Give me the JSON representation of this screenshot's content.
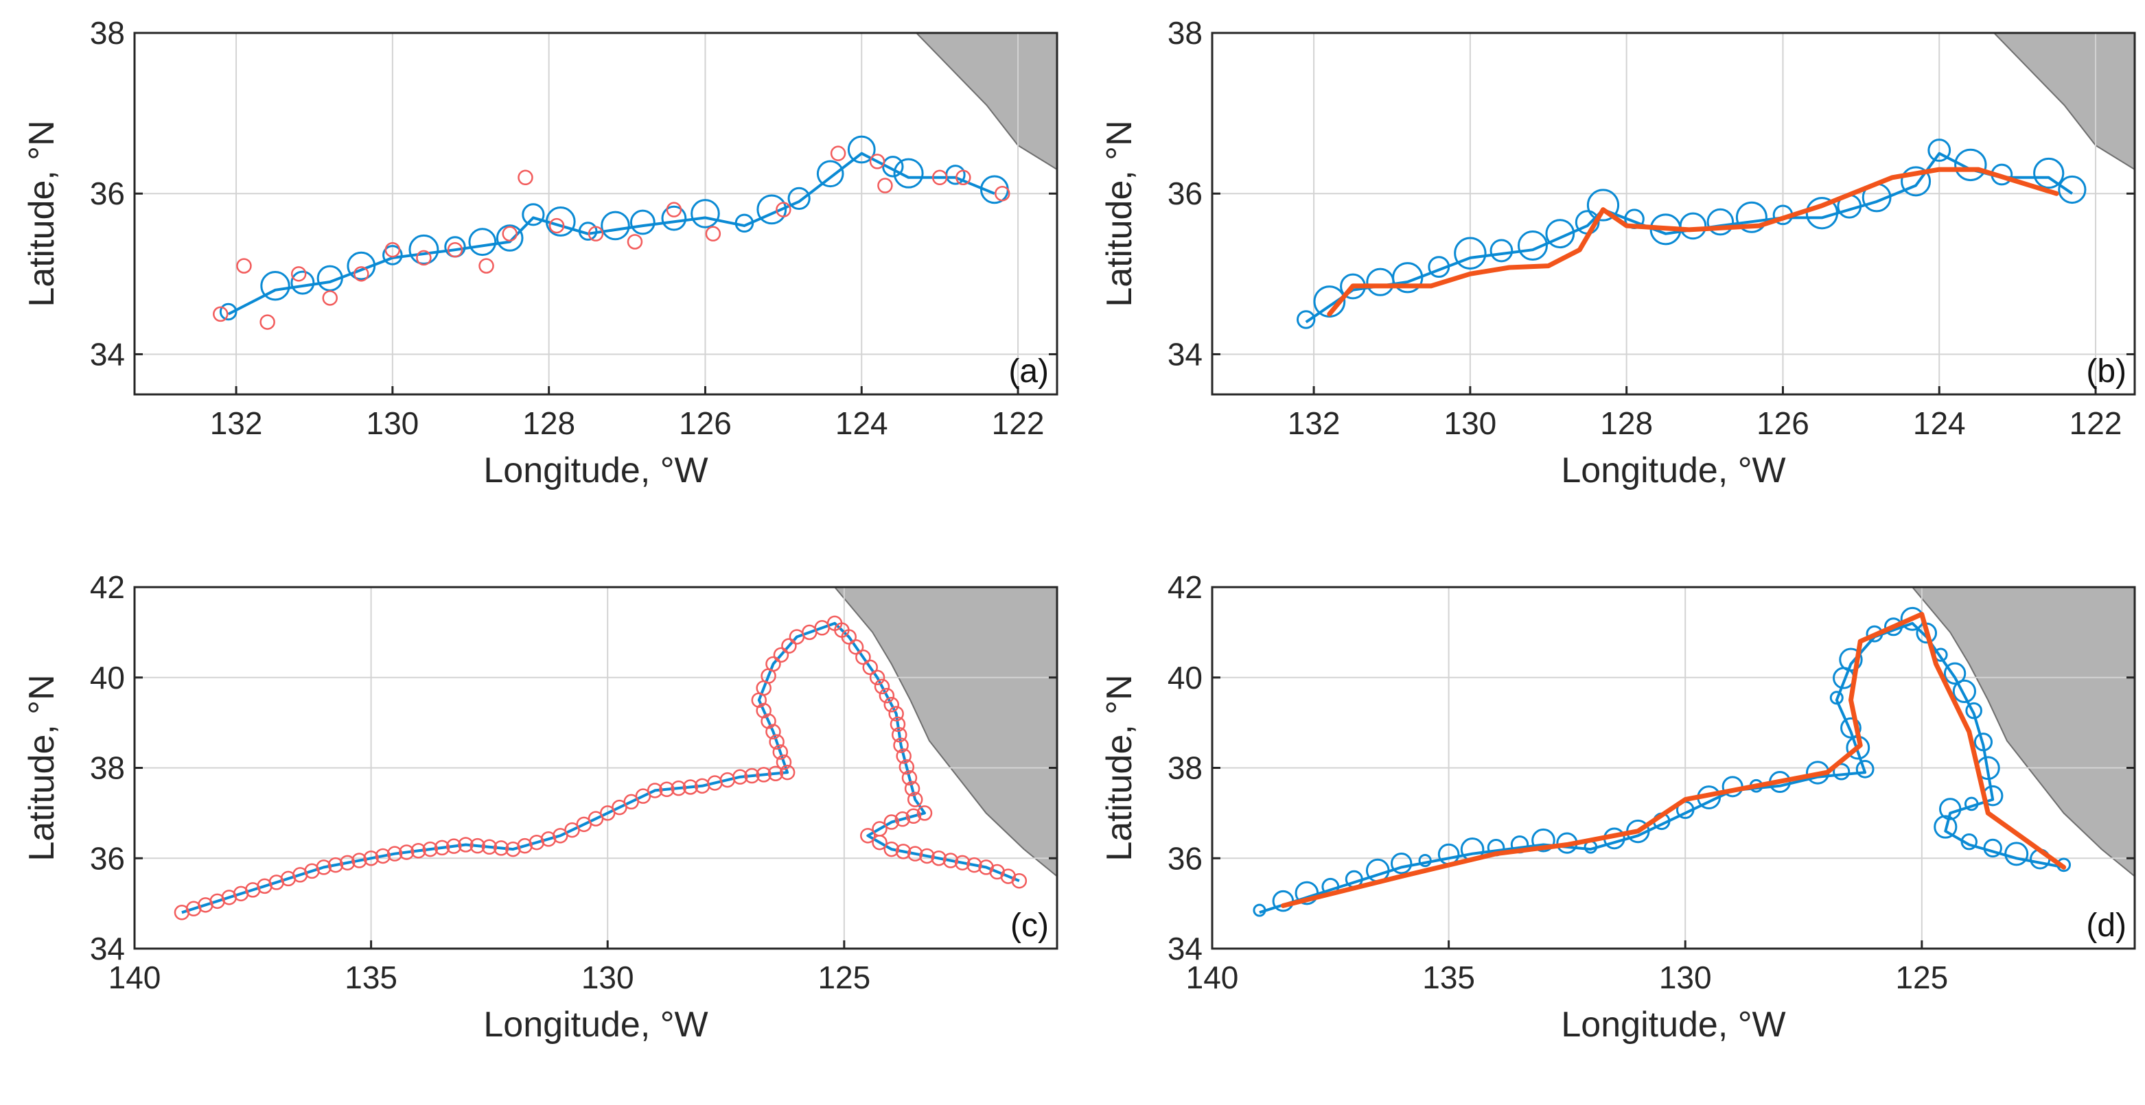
{
  "colors": {
    "track": "#0a8ad4",
    "circle": "#0a8ad4",
    "marker": "#f25c5c",
    "smooth": "#f2541b",
    "land": "#b3b3b3",
    "grid": "#d3d3d3",
    "axis": "#262626"
  },
  "chart_data": [
    {
      "type": "line",
      "panel_label": "(a)",
      "xlabel": "Longitude, °W",
      "ylabel": "Latitude, °N",
      "xlim": [
        133.3,
        121.5
      ],
      "ylim": [
        33.5,
        38
      ],
      "xticks": [
        132,
        130,
        128,
        126,
        124,
        122
      ],
      "yticks": [
        34,
        36,
        38
      ],
      "grid": true,
      "track": [
        [
          132.1,
          34.5
        ],
        [
          131.5,
          34.8
        ],
        [
          130.8,
          34.9
        ],
        [
          130,
          35.2
        ],
        [
          129.2,
          35.3
        ],
        [
          128.5,
          35.4
        ],
        [
          128.2,
          35.7
        ],
        [
          127.5,
          35.5
        ],
        [
          126.8,
          35.6
        ],
        [
          126,
          35.7
        ],
        [
          125.5,
          35.6
        ],
        [
          124.8,
          35.9
        ],
        [
          124.4,
          36.2
        ],
        [
          124,
          36.5
        ],
        [
          123.6,
          36.3
        ],
        [
          123.4,
          36.2
        ],
        [
          122.8,
          36.2
        ],
        [
          122.3,
          36
        ]
      ],
      "eddy_radius": 0.35,
      "markers": [
        [
          132.2,
          34.5
        ],
        [
          131.9,
          35.1
        ],
        [
          131.6,
          34.4
        ],
        [
          131.2,
          35
        ],
        [
          130.8,
          34.7
        ],
        [
          130.4,
          35
        ],
        [
          130,
          35.3
        ],
        [
          129.6,
          35.2
        ],
        [
          129.2,
          35.3
        ],
        [
          128.8,
          35.1
        ],
        [
          128.5,
          35.5
        ],
        [
          128.3,
          36.2
        ],
        [
          127.9,
          35.6
        ],
        [
          127.4,
          35.5
        ],
        [
          126.9,
          35.4
        ],
        [
          126.4,
          35.8
        ],
        [
          125.9,
          35.5
        ],
        [
          125,
          35.8
        ],
        [
          124.3,
          36.5
        ],
        [
          123.8,
          36.4
        ],
        [
          123.7,
          36.1
        ],
        [
          123,
          36.2
        ],
        [
          122.7,
          36.2
        ],
        [
          122.2,
          36
        ]
      ],
      "land": [
        [
          123.3,
          38
        ],
        [
          121.5,
          38
        ],
        [
          121.5,
          36.3
        ],
        [
          122,
          36.6
        ],
        [
          122.4,
          37.1
        ],
        [
          122.8,
          37.5
        ],
        [
          123.1,
          37.8
        ]
      ]
    },
    {
      "type": "line",
      "panel_label": "(b)",
      "xlabel": "Longitude, °W",
      "ylabel": "Latitude, °N",
      "xlim": [
        133.3,
        121.5
      ],
      "ylim": [
        33.5,
        38
      ],
      "xticks": [
        132,
        130,
        128,
        126,
        124,
        122
      ],
      "yticks": [
        34,
        36,
        38
      ],
      "grid": true,
      "track": [
        [
          132.1,
          34.4
        ],
        [
          131.5,
          34.8
        ],
        [
          130.8,
          34.9
        ],
        [
          130,
          35.2
        ],
        [
          129.2,
          35.3
        ],
        [
          128.5,
          35.6
        ],
        [
          128.3,
          35.8
        ],
        [
          127.5,
          35.5
        ],
        [
          126.8,
          35.6
        ],
        [
          126,
          35.7
        ],
        [
          125.5,
          35.7
        ],
        [
          124.8,
          35.9
        ],
        [
          124.3,
          36.1
        ],
        [
          124,
          36.5
        ],
        [
          123.6,
          36.3
        ],
        [
          123.2,
          36.2
        ],
        [
          122.6,
          36.2
        ],
        [
          122.3,
          36
        ]
      ],
      "eddy_radius": 0.38,
      "smooth": [
        [
          131.8,
          34.5
        ],
        [
          131.5,
          34.85
        ],
        [
          131,
          34.85
        ],
        [
          130.5,
          34.85
        ],
        [
          130,
          35
        ],
        [
          129.5,
          35.08
        ],
        [
          129,
          35.1
        ],
        [
          128.6,
          35.3
        ],
        [
          128.3,
          35.8
        ],
        [
          128,
          35.6
        ],
        [
          127.2,
          35.55
        ],
        [
          126.3,
          35.6
        ],
        [
          125.5,
          35.85
        ],
        [
          124.6,
          36.2
        ],
        [
          124,
          36.3
        ],
        [
          123.5,
          36.3
        ],
        [
          122.5,
          36
        ]
      ],
      "land": [
        [
          123.3,
          38
        ],
        [
          121.5,
          38
        ],
        [
          121.5,
          36.3
        ],
        [
          122,
          36.6
        ],
        [
          122.4,
          37.1
        ],
        [
          122.8,
          37.5
        ],
        [
          123.1,
          37.8
        ]
      ]
    },
    {
      "type": "line",
      "panel_label": "(c)",
      "xlabel": "Longitude, °W",
      "ylabel": "Latitude, °N",
      "xlim": [
        140,
        120.5
      ],
      "ylim": [
        34,
        42
      ],
      "xticks": [
        140,
        135,
        130,
        125
      ],
      "yticks": [
        34,
        36,
        38,
        40,
        42
      ],
      "grid": true,
      "track": [
        [
          139,
          34.8
        ],
        [
          137.5,
          35.3
        ],
        [
          136,
          35.8
        ],
        [
          134.5,
          36.1
        ],
        [
          133,
          36.3
        ],
        [
          132,
          36.2
        ],
        [
          131,
          36.5
        ],
        [
          130,
          37
        ],
        [
          129,
          37.5
        ],
        [
          128,
          37.6
        ],
        [
          127.2,
          37.8
        ],
        [
          126.2,
          37.9
        ],
        [
          126.5,
          38.8
        ],
        [
          126.8,
          39.5
        ],
        [
          126.5,
          40.3
        ],
        [
          126,
          40.9
        ],
        [
          125.2,
          41.2
        ],
        [
          124.9,
          40.9
        ],
        [
          124.3,
          40
        ],
        [
          123.9,
          39.2
        ],
        [
          123.8,
          38.5
        ],
        [
          123.5,
          37.3
        ],
        [
          123.3,
          37
        ],
        [
          124,
          36.8
        ],
        [
          124.5,
          36.5
        ],
        [
          124,
          36.2
        ],
        [
          123,
          36
        ],
        [
          122,
          35.8
        ],
        [
          121.3,
          35.5
        ]
      ],
      "marker_step": 0.25,
      "land": [
        [
          125.2,
          42
        ],
        [
          120.5,
          42
        ],
        [
          120.5,
          35.6
        ],
        [
          121.2,
          36.2
        ],
        [
          122,
          37
        ],
        [
          122.6,
          37.8
        ],
        [
          123.2,
          38.6
        ],
        [
          123.6,
          39.5
        ],
        [
          124,
          40.3
        ],
        [
          124.4,
          41
        ],
        [
          124.8,
          41.5
        ]
      ]
    },
    {
      "type": "line",
      "panel_label": "(d)",
      "xlabel": "Longitude, °W",
      "ylabel": "Latitude, °N",
      "xlim": [
        140,
        120.5
      ],
      "ylim": [
        34,
        42
      ],
      "xticks": [
        140,
        135,
        130,
        125
      ],
      "yticks": [
        34,
        36,
        38,
        40,
        42
      ],
      "grid": true,
      "track": [
        [
          139,
          34.8
        ],
        [
          137.5,
          35.3
        ],
        [
          136,
          35.8
        ],
        [
          134.5,
          36.1
        ],
        [
          133,
          36.3
        ],
        [
          132,
          36.2
        ],
        [
          131,
          36.5
        ],
        [
          130,
          37
        ],
        [
          129,
          37.5
        ],
        [
          128,
          37.6
        ],
        [
          127.2,
          37.8
        ],
        [
          126.2,
          37.9
        ],
        [
          126.5,
          38.8
        ],
        [
          126.8,
          39.5
        ],
        [
          126.5,
          40.3
        ],
        [
          126,
          40.9
        ],
        [
          125.2,
          41.2
        ],
        [
          124.9,
          40.9
        ],
        [
          124.3,
          40
        ],
        [
          123.9,
          39.2
        ],
        [
          123.7,
          38.5
        ],
        [
          123.5,
          37.3
        ],
        [
          124.4,
          37
        ],
        [
          124.5,
          36.6
        ],
        [
          124,
          36.3
        ],
        [
          123,
          36
        ],
        [
          122,
          35.8
        ]
      ],
      "smooth": [
        [
          138.5,
          34.95
        ],
        [
          136,
          35.6
        ],
        [
          134,
          36.1
        ],
        [
          132.5,
          36.3
        ],
        [
          131,
          36.6
        ],
        [
          130,
          37.3
        ],
        [
          128.5,
          37.6
        ],
        [
          127,
          37.9
        ],
        [
          126.3,
          38.5
        ],
        [
          126.5,
          39.5
        ],
        [
          126.3,
          40.8
        ],
        [
          125,
          41.4
        ],
        [
          124.7,
          40.3
        ],
        [
          124,
          38.8
        ],
        [
          123.6,
          37
        ],
        [
          122,
          35.8
        ]
      ],
      "land": [
        [
          125.2,
          42
        ],
        [
          120.5,
          42
        ],
        [
          120.5,
          35.6
        ],
        [
          121.2,
          36.2
        ],
        [
          122,
          37
        ],
        [
          122.6,
          37.8
        ],
        [
          123.2,
          38.6
        ],
        [
          123.6,
          39.5
        ],
        [
          124,
          40.3
        ],
        [
          124.4,
          41
        ],
        [
          124.8,
          41.5
        ]
      ]
    }
  ]
}
